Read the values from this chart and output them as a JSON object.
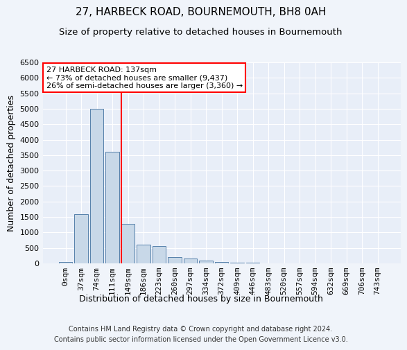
{
  "title": "27, HARBECK ROAD, BOURNEMOUTH, BH8 0AH",
  "subtitle": "Size of property relative to detached houses in Bournemouth",
  "xlabel": "Distribution of detached houses by size in Bournemouth",
  "ylabel": "Number of detached properties",
  "bar_labels": [
    "0sqm",
    "37sqm",
    "74sqm",
    "111sqm",
    "149sqm",
    "186sqm",
    "223sqm",
    "260sqm",
    "297sqm",
    "334sqm",
    "372sqm",
    "409sqm",
    "446sqm",
    "483sqm",
    "520sqm",
    "557sqm",
    "594sqm",
    "632sqm",
    "669sqm",
    "706sqm",
    "743sqm"
  ],
  "bar_values": [
    50,
    1600,
    5000,
    3600,
    1280,
    600,
    560,
    200,
    150,
    100,
    50,
    25,
    25,
    10,
    8,
    5,
    4,
    3,
    2,
    2,
    1
  ],
  "bar_color": "#c8d8e8",
  "bar_edge_color": "#5580aa",
  "red_line_x": 3.575,
  "annotation_text": "27 HARBECK ROAD: 137sqm\n← 73% of detached houses are smaller (9,437)\n26% of semi-detached houses are larger (3,360) →",
  "annotation_box_color": "white",
  "annotation_box_edge_color": "red",
  "ylim": [
    0,
    6500
  ],
  "yticks": [
    0,
    500,
    1000,
    1500,
    2000,
    2500,
    3000,
    3500,
    4000,
    4500,
    5000,
    5500,
    6000,
    6500
  ],
  "footer_line1": "Contains HM Land Registry data © Crown copyright and database right 2024.",
  "footer_line2": "Contains public sector information licensed under the Open Government Licence v3.0.",
  "bg_color": "#f0f4fa",
  "plot_bg_color": "#e8eef8",
  "grid_color": "white",
  "title_fontsize": 11,
  "subtitle_fontsize": 9.5,
  "axis_label_fontsize": 9,
  "tick_fontsize": 8,
  "footer_fontsize": 7,
  "annotation_fontsize": 8
}
